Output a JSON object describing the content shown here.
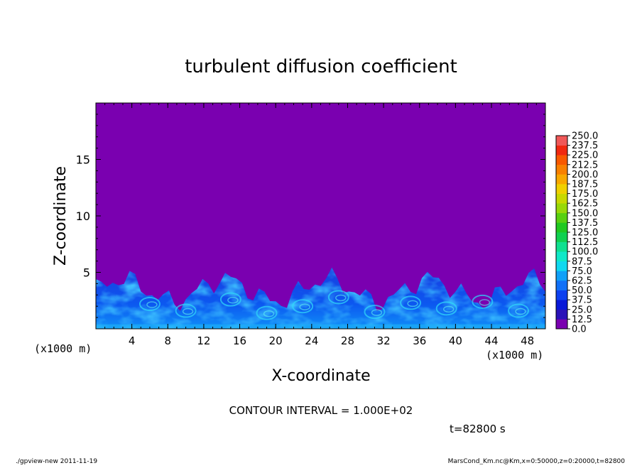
{
  "chart_data": {
    "type": "heatmap",
    "title": "turbulent diffusion coefficient",
    "xlabel": "X-coordinate",
    "ylabel": "Z-coordinate",
    "x_unit_left": "(x1000 m)",
    "x_unit_right": "(x1000 m)",
    "xlim": [
      0,
      50
    ],
    "ylim": [
      0,
      20
    ],
    "xticks": [
      "4",
      "8",
      "12",
      "16",
      "20",
      "24",
      "28",
      "32",
      "36",
      "40",
      "44",
      "48"
    ],
    "yticks": [
      "5",
      "10",
      "15"
    ],
    "colorbar": {
      "labels": [
        "0.0",
        "12.5",
        "25.0",
        "37.5",
        "50.0",
        "62.5",
        "75.0",
        "87.5",
        "100.0",
        "112.5",
        "125.0",
        "137.5",
        "150.0",
        "162.5",
        "175.0",
        "187.5",
        "200.0",
        "212.5",
        "225.0",
        "237.5",
        "250.0"
      ],
      "colors": [
        "#7a00b0",
        "#2a12b8",
        "#0818d8",
        "#0c40f0",
        "#1070f8",
        "#10a0f8",
        "#10d8f0",
        "#10e8c8",
        "#10e090",
        "#10d050",
        "#20c820",
        "#58d010",
        "#98d808",
        "#c8d800",
        "#f0d000",
        "#f8a800",
        "#f88000",
        "#f85800",
        "#f02810",
        "#f05858"
      ]
    },
    "background_value": 0.0,
    "turbulent_layer_top_approx_km": 5.5,
    "contour_interval_text": "CONTOUR INTERVAL = 1.000E+02",
    "time_text": "t=82800 s"
  },
  "footer": {
    "left": "./gpview-new   2011-11-19",
    "right": "MarsCond_Km.nc@Km,x=0:50000,z=0:20000,t=82800"
  }
}
